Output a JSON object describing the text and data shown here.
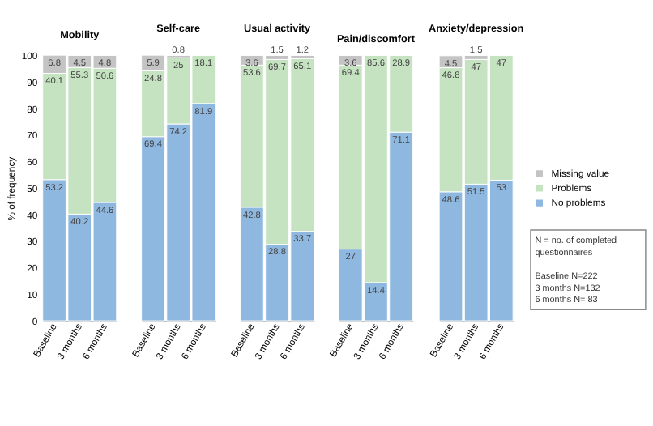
{
  "chart_data": [
    {
      "type": "bar",
      "title": "Mobility",
      "ylabel": "% of frequency",
      "categories": [
        "Baseline",
        "3 months",
        "6 months"
      ],
      "stacked": true,
      "ylim": [
        0,
        100
      ],
      "yticks": [
        0,
        10,
        20,
        30,
        40,
        50,
        60,
        70,
        80,
        90,
        100
      ],
      "data_labels": true,
      "series": [
        {
          "color": "#8fb8e0",
          "values": [
            53.2,
            40.2,
            44.6
          ]
        },
        {
          "color": "#c5e3c1",
          "values": [
            40.1,
            55.3,
            50.6
          ]
        },
        {
          "color": "#c4c4c4",
          "values": [
            6.8,
            4.5,
            4.8
          ]
        }
      ]
    },
    {
      "type": "bar",
      "title": "Self-care",
      "categories": [
        "Baseline",
        "3 months",
        "6 months"
      ],
      "stacked": true,
      "ylim": [
        0,
        100
      ],
      "tick_labels": "x",
      "data_labels": true,
      "series": [
        {
          "color": "#8fb8e0",
          "values": [
            69.4,
            74.2,
            81.9
          ]
        },
        {
          "color": "#c5e3c1",
          "values": [
            24.8,
            25,
            18.1
          ]
        },
        {
          "color": "#c4c4c4",
          "values": [
            5.9,
            0.8,
            null
          ]
        }
      ]
    },
    {
      "type": "bar",
      "title": "Usual activity",
      "categories": [
        "Baseline",
        "3 months",
        "6 months"
      ],
      "stacked": true,
      "ylim": [
        0,
        100
      ],
      "tick_labels": "x",
      "data_labels": true,
      "series": [
        {
          "color": "#8fb8e0",
          "values": [
            42.8,
            28.8,
            33.7
          ]
        },
        {
          "color": "#c5e3c1",
          "values": [
            53.6,
            69.7,
            65.1
          ]
        },
        {
          "color": "#c4c4c4",
          "values": [
            3.6,
            1.5,
            1.2
          ]
        }
      ]
    },
    {
      "type": "bar",
      "title": "Pain/discomfort",
      "categories": [
        "Baseline",
        "3 months",
        "6 months"
      ],
      "stacked": true,
      "ylim": [
        0,
        100
      ],
      "tick_labels": "x",
      "data_labels": true,
      "series": [
        {
          "color": "#8fb8e0",
          "values": [
            27,
            14.4,
            71.1
          ]
        },
        {
          "color": "#c5e3c1",
          "values": [
            69.4,
            85.6,
            28.9
          ]
        },
        {
          "color": "#c4c4c4",
          "values": [
            3.6,
            null,
            null
          ]
        }
      ]
    },
    {
      "type": "bar",
      "title": "Anxiety/depression",
      "categories": [
        "Baseline",
        "3 months",
        "6 months"
      ],
      "stacked": true,
      "ylim": [
        0,
        100
      ],
      "tick_labels": "x",
      "data_labels": true,
      "legend": "right",
      "annotations": [
        "N = no. of completed questionnaires",
        "Baseline N=222",
        "3 months N=132",
        "6 months N= 83"
      ],
      "series": [
        {
          "name": "No problems",
          "color": "#8fb8e0",
          "values": [
            48.6,
            51.5,
            53
          ]
        },
        {
          "name": "Problems",
          "color": "#c5e3c1",
          "values": [
            46.8,
            47,
            47
          ]
        },
        {
          "name": "Missing value",
          "color": "#c4c4c4",
          "values": [
            4.5,
            1.5,
            null
          ]
        }
      ]
    }
  ]
}
